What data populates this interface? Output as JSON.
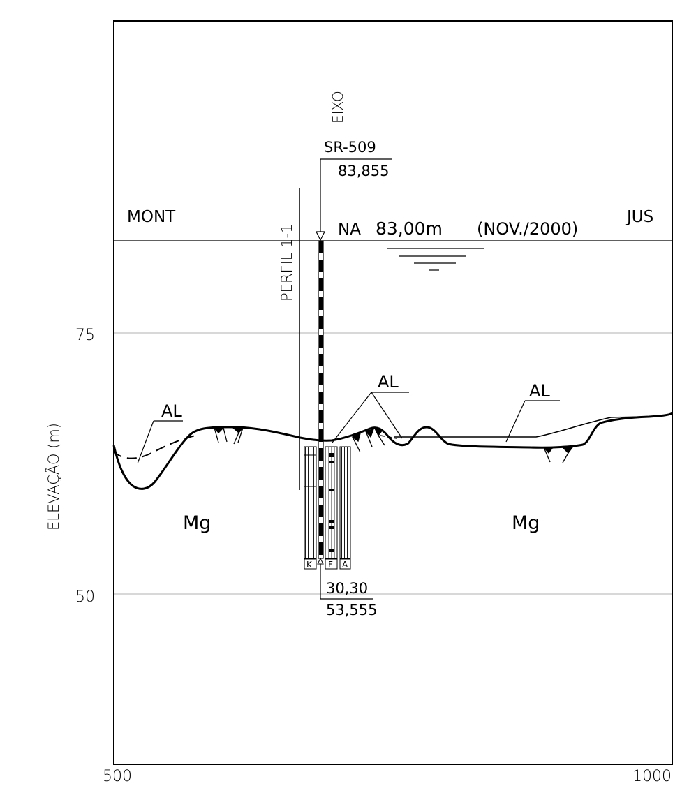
{
  "section": {
    "upstream_label": "MONT",
    "downstream_label": "JUS",
    "y_axis_label": "ELEVAÇÃO (m)",
    "y_ticks": [
      75,
      50
    ],
    "x_ticks": [
      500,
      1000
    ],
    "x_range": [
      500,
      1000
    ],
    "y_range": [
      30,
      105
    ],
    "water_level": {
      "label_prefix": "NA",
      "value_text": "83,00m",
      "date_text": "(NOV./2000)",
      "elevation": 83
    },
    "axis_line": {
      "label": "EIXO",
      "borehole_id": "SR-509",
      "top_elevation_text": "83,855",
      "depth_text": "30,30",
      "bottom_elevation_text": "53,555",
      "top_elevation": 83.855,
      "bottom_elevation": 53.555
    },
    "profile": {
      "label": "PERFIL 1-1"
    },
    "units": [
      {
        "code": "AL"
      },
      {
        "code": "AL"
      },
      {
        "code": "AL"
      },
      {
        "code": "Mg"
      },
      {
        "code": "Mg"
      }
    ],
    "log_columns": [
      {
        "code": "K"
      },
      {
        "code": "F"
      },
      {
        "code": "A"
      }
    ]
  }
}
